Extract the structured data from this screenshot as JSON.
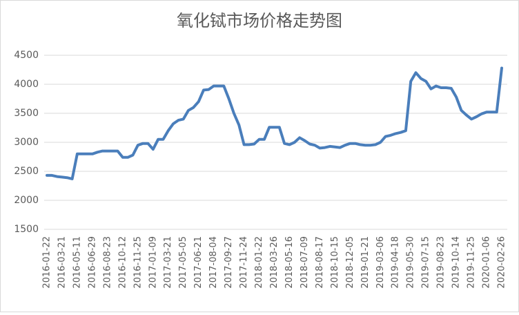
{
  "chart_data": {
    "type": "line",
    "title": "氧化铽市场价格走势图",
    "categories": [
      "2016-01-22",
      null,
      null,
      "2016-03-21",
      null,
      null,
      "2016-05-11",
      null,
      null,
      "2016-06-29",
      null,
      null,
      "2016-08-23",
      null,
      null,
      "2016-10-12",
      null,
      null,
      "2016-11-25",
      null,
      null,
      "2017-01-09",
      null,
      null,
      "2017-03-21",
      null,
      null,
      "2017-05-05",
      null,
      null,
      "2017-06-21",
      null,
      null,
      "2017-08-04",
      null,
      null,
      "2017-09-27",
      null,
      null,
      "2017-11-24",
      null,
      null,
      "2018-01-22",
      null,
      null,
      "2018-03-26",
      null,
      null,
      "2018-05-16",
      null,
      null,
      "2018-07-09",
      null,
      null,
      "2018-08-17",
      null,
      null,
      "2018-10-15",
      null,
      null,
      "2018-12-05",
      null,
      null,
      "2019-01-21",
      null,
      null,
      "2019-03-06",
      null,
      null,
      "2019-04-18",
      null,
      null,
      "2019-05-30",
      null,
      null,
      "2019-07-15",
      null,
      null,
      "2019-08-23",
      null,
      null,
      "2019-10-14",
      null,
      null,
      "2019-11-25",
      null,
      null,
      "2020-01-06",
      null,
      null,
      "2020-02-26"
    ],
    "values": [
      2430,
      2430,
      2410,
      2400,
      2390,
      2370,
      2800,
      2800,
      2800,
      2800,
      2830,
      2850,
      2850,
      2850,
      2850,
      2740,
      2740,
      2780,
      2950,
      2980,
      2980,
      2880,
      3050,
      3050,
      3200,
      3320,
      3380,
      3400,
      3550,
      3600,
      3700,
      3900,
      3910,
      3970,
      3970,
      3970,
      3750,
      3500,
      3300,
      2960,
      2960,
      2970,
      3050,
      3050,
      3260,
      3260,
      3260,
      2980,
      2960,
      3000,
      3080,
      3030,
      2970,
      2950,
      2900,
      2910,
      2930,
      2920,
      2910,
      2950,
      2980,
      2980,
      2960,
      2950,
      2950,
      2960,
      3000,
      3100,
      3120,
      3150,
      3170,
      3200,
      4050,
      4200,
      4100,
      4050,
      3920,
      3970,
      3940,
      3940,
      3930,
      3780,
      3550,
      3470,
      3400,
      3440,
      3490,
      3520,
      3520,
      3520,
      4280
    ],
    "color": "#4a7ebb",
    "ylim": [
      1500,
      4500
    ],
    "yticks": [
      1500,
      2000,
      2500,
      3000,
      3500,
      4000,
      4500
    ],
    "grid": true
  }
}
